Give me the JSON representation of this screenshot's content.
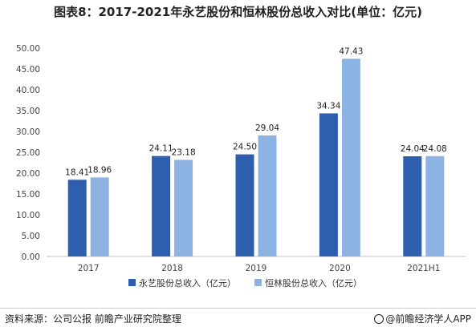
{
  "title": "图表8：2017-2021年永艺股份和恒林股份总收入对比(单位：亿元)",
  "source_text": "资料来源：公司公报 前瞻产业研究院整理",
  "brand_text": "@前瞻经济学人APP",
  "chart_data": {
    "type": "bar",
    "categories": [
      "2017",
      "2018",
      "2019",
      "2020",
      "2021H1"
    ],
    "series": [
      {
        "name": "永艺股份总收入（亿元）",
        "color": "#2E5FAE",
        "values": [
          18.41,
          24.11,
          24.5,
          34.34,
          24.04
        ],
        "labels": [
          "18.41",
          "24.11",
          "24.50",
          "34.34",
          "24.04"
        ]
      },
      {
        "name": "恒林股份总收入（亿元）",
        "color": "#8DB3E2",
        "values": [
          18.96,
          23.18,
          29.04,
          47.43,
          24.08
        ],
        "labels": [
          "18.96",
          "23.18",
          "29.04",
          "47.43",
          "24.08"
        ]
      }
    ],
    "ylim": [
      0,
      50
    ],
    "yticks": [
      "0.00",
      "5.00",
      "10.00",
      "15.00",
      "20.00",
      "25.00",
      "30.00",
      "35.00",
      "40.00",
      "45.00",
      "50.00"
    ],
    "grid": false,
    "legend": "bottom-center"
  }
}
